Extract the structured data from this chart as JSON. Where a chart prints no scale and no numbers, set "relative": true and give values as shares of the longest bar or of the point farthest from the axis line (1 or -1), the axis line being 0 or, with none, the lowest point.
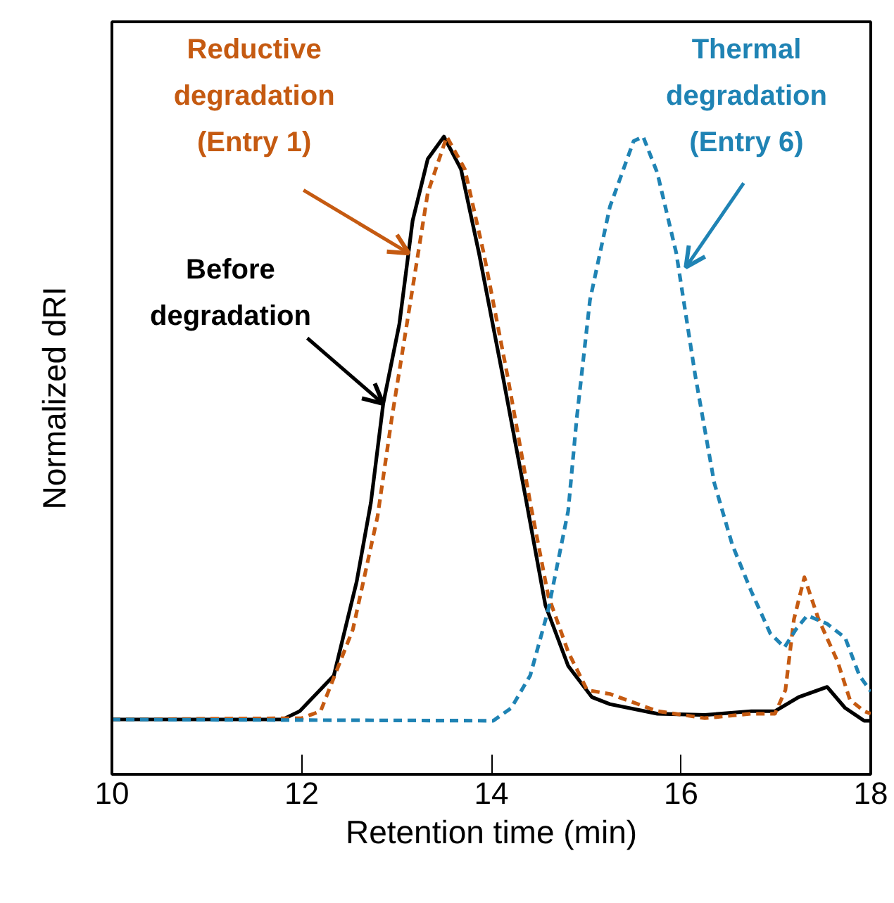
{
  "chart_data": {
    "type": "line",
    "relative": true,
    "xlabel": "Retention time (min)",
    "ylabel": "Normalized dRI",
    "xlim": [
      10,
      18
    ],
    "xticks": [
      10,
      12,
      14,
      16,
      18
    ],
    "tick_labels": "x",
    "grid": false,
    "series": [
      {
        "name": "Before degradation",
        "color": "#000000",
        "line_style": "solid",
        "x": [
          10,
          11.8,
          11.98,
          12.34,
          12.58,
          12.73,
          12.86,
          13.03,
          13.17,
          13.33,
          13.5,
          13.68,
          13.87,
          14.12,
          14.36,
          14.57,
          14.81,
          15.06,
          15.25,
          15.75,
          16.25,
          16.74,
          16.99,
          17.24,
          17.54,
          17.73,
          17.93,
          18
        ],
        "values": [
          0.086,
          0.086,
          0.099,
          0.155,
          0.302,
          0.426,
          0.581,
          0.706,
          0.868,
          0.965,
          1,
          0.949,
          0.817,
          0.625,
          0.435,
          0.265,
          0.17,
          0.121,
          0.11,
          0.095,
          0.093,
          0.099,
          0.099,
          0.121,
          0.137,
          0.104,
          0.084,
          0.084
        ]
      },
      {
        "name": "Reductive degradation (Entry 1)",
        "color": "#c55a11",
        "line_style": "dashed",
        "x": [
          10,
          12.0,
          12.2,
          12.54,
          12.8,
          12.95,
          13.15,
          13.33,
          13.53,
          13.72,
          13.92,
          14.17,
          14.41,
          14.6,
          14.81,
          15.01,
          15.25,
          15.75,
          16.25,
          16.74,
          16.99,
          17.1,
          17.19,
          17.3,
          17.45,
          17.65,
          17.78,
          17.93,
          18
        ],
        "values": [
          0.086,
          0.088,
          0.099,
          0.227,
          0.404,
          0.558,
          0.744,
          0.912,
          1,
          0.949,
          0.817,
          0.625,
          0.426,
          0.28,
          0.192,
          0.132,
          0.126,
          0.099,
          0.088,
          0.095,
          0.095,
          0.132,
          0.243,
          0.309,
          0.243,
          0.177,
          0.117,
          0.099,
          0.095
        ]
      },
      {
        "name": "Thermal degradation (Entry 6)",
        "color": "#1f83b4",
        "line_style": "dashed",
        "x": [
          10,
          14.02,
          14.21,
          14.41,
          14.6,
          14.81,
          14.9,
          15.04,
          15.25,
          15.5,
          15.6,
          15.75,
          15.95,
          16.15,
          16.35,
          16.54,
          16.74,
          16.94,
          17.09,
          17.21,
          17.33,
          17.54,
          17.73,
          17.88,
          18
        ],
        "values": [
          0.086,
          0.084,
          0.104,
          0.155,
          0.258,
          0.413,
          0.558,
          0.744,
          0.89,
          0.993,
          1,
          0.943,
          0.817,
          0.625,
          0.457,
          0.36,
          0.287,
          0.221,
          0.199,
          0.227,
          0.249,
          0.236,
          0.214,
          0.155,
          0.13
        ]
      }
    ]
  }
}
